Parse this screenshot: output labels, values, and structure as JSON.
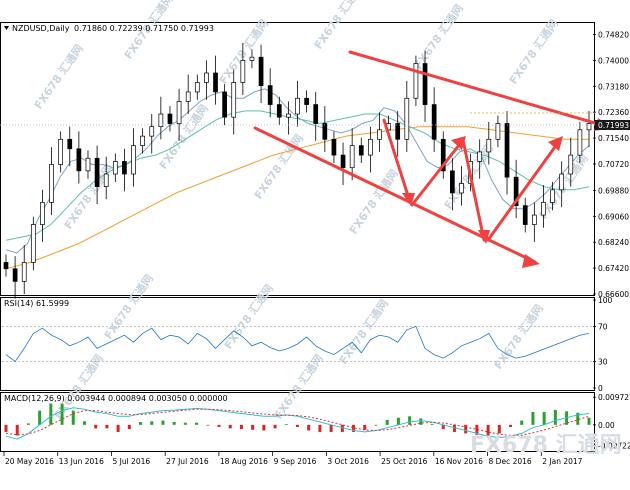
{
  "chart_data": [
    {
      "type": "candlestick",
      "symbol_label": "NZDUSD,Daily",
      "ohlc_label": "0.71860 0.72239 0.71750 0.71993",
      "last_price_label": "0.71993",
      "y_ticks": [
        "0.74820",
        "0.74000",
        "0.73180",
        "0.72360",
        "0.71540",
        "0.70720",
        "0.69880",
        "0.69060",
        "0.68240",
        "0.67420",
        "0.66600"
      ],
      "ylim": [
        0.666,
        0.7512
      ],
      "x_ticks": [
        "20 May 2016",
        "13 Jun 2016",
        "5 Jul 2016",
        "27 Jul 2016",
        "18 Aug 2016",
        "9 Sep 2016",
        "3 Oct 2016",
        "25 Oct 2016",
        "16 Nov 2016",
        "8 Dec 2016",
        "2 Jan 2017"
      ],
      "close_path": [
        0.674,
        0.67,
        0.676,
        0.688,
        0.695,
        0.707,
        0.715,
        0.712,
        0.705,
        0.709,
        0.7,
        0.704,
        0.708,
        0.704,
        0.713,
        0.716,
        0.719,
        0.723,
        0.72,
        0.727,
        0.73,
        0.733,
        0.736,
        0.73,
        0.722,
        0.733,
        0.74,
        0.741,
        0.732,
        0.726,
        0.722,
        0.723,
        0.728,
        0.726,
        0.72,
        0.715,
        0.71,
        0.706,
        0.713,
        0.71,
        0.715,
        0.718,
        0.72,
        0.715,
        0.728,
        0.739,
        0.726,
        0.715,
        0.705,
        0.698,
        0.701,
        0.708,
        0.711,
        0.715,
        0.72,
        0.703,
        0.694,
        0.688,
        0.691,
        0.695,
        0.699,
        0.704,
        0.71,
        0.718,
        0.72
      ],
      "indicators": {
        "ma_fast": [
          0.68,
          0.679,
          0.682,
          0.69,
          0.696,
          0.703,
          0.708,
          0.709,
          0.707,
          0.707,
          0.706,
          0.707,
          0.709,
          0.712,
          0.716,
          0.719,
          0.721,
          0.724,
          0.727,
          0.729,
          0.73,
          0.728,
          0.728,
          0.73,
          0.731,
          0.729,
          0.725,
          0.722,
          0.72,
          0.719,
          0.718,
          0.717,
          0.718,
          0.72,
          0.721,
          0.725,
          0.724,
          0.72,
          0.714,
          0.708,
          0.706,
          0.707,
          0.711,
          0.712,
          0.71,
          0.702,
          0.696,
          0.693,
          0.693,
          0.695,
          0.698,
          0.702,
          0.706,
          0.71,
          0.713
        ],
        "ma_mid": [
          0.683,
          0.684,
          0.685,
          0.688,
          0.693,
          0.698,
          0.702,
          0.705,
          0.707,
          0.709,
          0.71,
          0.712,
          0.715,
          0.718,
          0.721,
          0.723,
          0.724,
          0.724,
          0.723,
          0.722,
          0.721,
          0.72,
          0.721,
          0.722,
          0.723,
          0.723,
          0.721,
          0.719,
          0.717,
          0.714,
          0.712,
          0.711,
          0.71,
          0.708,
          0.705,
          0.702,
          0.7,
          0.699,
          0.699,
          0.7
        ],
        "ma_slow": [
          0.674,
          0.676,
          0.679,
          0.682,
          0.686,
          0.69,
          0.694,
          0.698,
          0.701,
          0.704,
          0.707,
          0.71,
          0.712,
          0.714,
          0.716,
          0.717,
          0.718,
          0.719,
          0.719,
          0.719,
          0.718,
          0.717,
          0.716,
          0.715,
          0.715
        ]
      }
    },
    {
      "type": "line",
      "title": "RSI(14) 61.5999",
      "y_ticks": [
        "100",
        "70",
        "30",
        "0"
      ],
      "levels": [
        70,
        30
      ],
      "ylim": [
        0,
        100
      ],
      "values": [
        38,
        30,
        45,
        62,
        68,
        60,
        55,
        48,
        52,
        58,
        45,
        50,
        55,
        60,
        52,
        62,
        68,
        55,
        60,
        58,
        50,
        62,
        56,
        45,
        55,
        65,
        58,
        48,
        52,
        46,
        42,
        45,
        50,
        58,
        48,
        42,
        38,
        45,
        52,
        40,
        55,
        60,
        58,
        52,
        66,
        70,
        45,
        38,
        34,
        40,
        48,
        52,
        56,
        62,
        45,
        38,
        34,
        36,
        40,
        44,
        48,
        52,
        56,
        60,
        62
      ]
    },
    {
      "type": "line",
      "title": "MACD(12,26,9) 0.003944 0.000894 0.003050 0.000000",
      "y_ticks": [
        "0.009727",
        "0.00",
        "-0.007228"
      ],
      "ylim": [
        -0.0085,
        0.0105
      ],
      "macd": [
        -0.004,
        -0.005,
        -0.003,
        0.0,
        0.003,
        0.005,
        0.006,
        0.0055,
        0.0045,
        0.004,
        0.003,
        0.003,
        0.004,
        0.0045,
        0.005,
        0.0052,
        0.0055,
        0.0058,
        0.0055,
        0.005,
        0.0045,
        0.004,
        0.0035,
        0.003,
        0.003,
        0.0035,
        0.003,
        0.002,
        0.001,
        0.0,
        -0.001,
        -0.002,
        -0.0025,
        -0.002,
        -0.001,
        0.0,
        0.001,
        0.0015,
        0.001,
        0.0,
        -0.001,
        -0.002,
        -0.003,
        -0.004,
        -0.0045,
        -0.004,
        -0.003,
        -0.001,
        0.0,
        0.0015,
        0.0025,
        0.0035,
        0.004
      ],
      "signal": [
        -0.003,
        -0.0035,
        -0.0032,
        -0.002,
        0.0,
        0.002,
        0.004,
        0.005,
        0.005,
        0.0045,
        0.004,
        0.0036,
        0.0036,
        0.004,
        0.0044,
        0.0048,
        0.0052,
        0.0055,
        0.0055,
        0.0053,
        0.005,
        0.0046,
        0.0042,
        0.0038,
        0.0035,
        0.0034,
        0.0033,
        0.0028,
        0.002,
        0.001,
        0.0,
        -0.001,
        -0.0018,
        -0.002,
        -0.0017,
        -0.001,
        -0.0002,
        0.0006,
        0.0009,
        0.0006,
        0.0,
        -0.0008,
        -0.0016,
        -0.0025,
        -0.0033,
        -0.0037,
        -0.0036,
        -0.0028,
        -0.0018,
        -0.0006,
        0.0006,
        0.0018,
        0.003
      ]
    }
  ],
  "watermarks": [
    "FX678 汇通网",
    "FX678 汇通网",
    "FX678 汇通网",
    "FX678 汇通网",
    "FX678 汇通网",
    "FX678 汇通网",
    "FX678 汇通网",
    "FX678 汇通网",
    "FX678 汇通网",
    "FX678 汇通网",
    "FX678 汇通网",
    "FX678 汇通网",
    "FX678 汇通网",
    "FX678 汇通网",
    "FX678 汇通网",
    "FX678 汇通网",
    "FX678 汇通网",
    "FX678 汇通网"
  ],
  "big_watermark": "FX678 汇通网",
  "colors": {
    "up": "#000000",
    "down": "#000000",
    "ma_fast": "#7fa3c2",
    "ma_mid": "#5bc0b0",
    "ma_slow": "#f0a030",
    "rsi": "#1e73d2",
    "macd": "#31c0d8",
    "signal": "#e03030",
    "hist_pos": "#2ca02c",
    "hist_neg": "#d62728",
    "arrow": "#f04040"
  }
}
